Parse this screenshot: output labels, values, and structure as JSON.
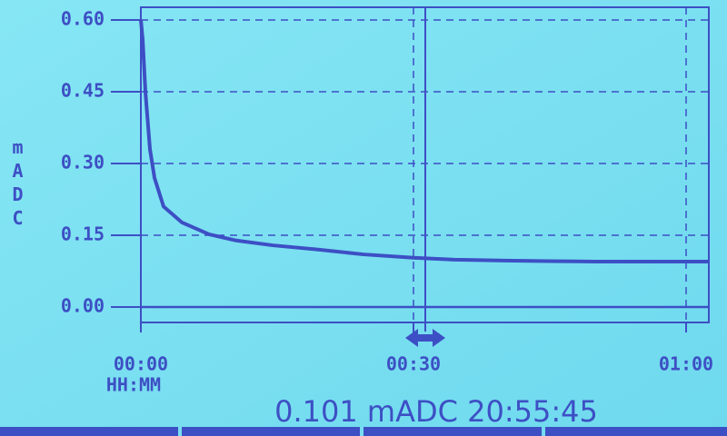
{
  "chart_data": {
    "type": "line",
    "y_label": "mADC",
    "x_label": "HH:MM",
    "readout": "0.101 mADC 20:55:45",
    "x": [
      0,
      0.2,
      0.5,
      1,
      1.5,
      2.5,
      4.5,
      7.5,
      10.5,
      14.5,
      19.5,
      24.5,
      30,
      34.5,
      40,
      45,
      50,
      55,
      60,
      62.5
    ],
    "series": [
      {
        "color": "#3d4fc4",
        "values": [
          0.6,
          0.56,
          0.45,
          0.33,
          0.27,
          0.21,
          0.177,
          0.152,
          0.139,
          0.129,
          0.12,
          0.11,
          0.103,
          0.099,
          0.097,
          0.096,
          0.095,
          0.095,
          0.095,
          0.095
        ]
      }
    ],
    "xlim": [
      0,
      62.5
    ],
    "ylim": [
      0,
      0.6
    ],
    "xticks": [
      {
        "value": 0,
        "label": "00:00"
      },
      {
        "value": 30,
        "label": "00:30"
      },
      {
        "value": 60,
        "label": "01:00"
      }
    ],
    "yticks": [
      {
        "value": 0,
        "label": "0.00"
      },
      {
        "value": 0.15,
        "label": "0.15"
      },
      {
        "value": 0.3,
        "label": "0.30"
      },
      {
        "value": 0.45,
        "label": "0.45"
      },
      {
        "value": 0.6,
        "label": "0.60"
      }
    ],
    "cursor_x": 31.3,
    "grid": true
  }
}
